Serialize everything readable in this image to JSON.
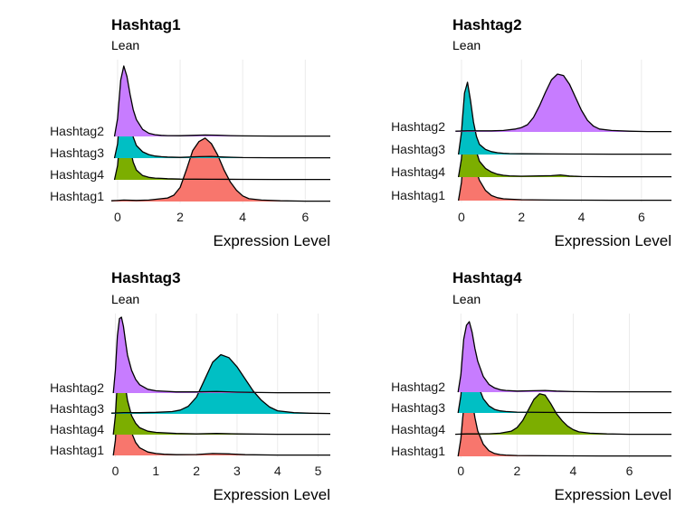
{
  "colors": {
    "Hashtag1": "#F8766D",
    "Hashtag2": "#C77CFF",
    "Hashtag3": "#00BFC4",
    "Hashtag4": "#7CAE00",
    "gridline": "#EBEBEB",
    "outline": "#000000"
  },
  "chart_data": [
    {
      "type": "area",
      "subtype": "ridgeline",
      "title": "Hashtag1",
      "subtitle": "Lean",
      "xlabel": "Expression Level",
      "ylabel": "",
      "xlim": [
        -0.2,
        6.8
      ],
      "xticks": [
        0,
        2,
        4,
        6
      ],
      "grid": true,
      "legend": "none",
      "rows": [
        "Hashtag2",
        "Hashtag3",
        "Hashtag4",
        "Hashtag1"
      ],
      "series": [
        {
          "name": "Hashtag1",
          "x": [
            -0.2,
            0.2,
            0.6,
            1.0,
            1.4,
            1.6,
            1.8,
            2.0,
            2.2,
            2.4,
            2.6,
            2.8,
            3.0,
            3.2,
            3.4,
            3.6,
            3.8,
            4.0,
            4.2,
            4.6,
            5.2,
            6.0,
            6.8
          ],
          "density": [
            0.01,
            0.02,
            0.015,
            0.02,
            0.04,
            0.05,
            0.09,
            0.2,
            0.45,
            0.72,
            0.85,
            0.9,
            0.82,
            0.66,
            0.45,
            0.28,
            0.16,
            0.08,
            0.04,
            0.02,
            0.01,
            0.005,
            0.005
          ]
        },
        {
          "name": "Hashtag4",
          "x": [
            -0.1,
            0.0,
            0.1,
            0.2,
            0.3,
            0.4,
            0.5,
            0.6,
            0.8,
            1.0,
            1.2,
            1.4,
            1.6,
            2.0,
            3.0,
            4.0,
            5.0,
            6.0,
            6.8
          ],
          "density": [
            0.0,
            0.2,
            0.7,
            1.0,
            0.8,
            0.45,
            0.25,
            0.14,
            0.06,
            0.035,
            0.025,
            0.02,
            0.015,
            0.01,
            0.008,
            0.006,
            0.005,
            0.005,
            0.005
          ]
        },
        {
          "name": "Hashtag3",
          "x": [
            -0.1,
            0.0,
            0.1,
            0.2,
            0.3,
            0.4,
            0.5,
            0.6,
            0.8,
            1.0,
            1.2,
            1.4,
            1.6,
            2.0,
            2.6,
            3.0,
            3.4,
            4.0,
            5.0,
            6.0,
            6.8
          ],
          "density": [
            0.0,
            0.2,
            0.75,
            1.0,
            0.82,
            0.5,
            0.3,
            0.18,
            0.09,
            0.05,
            0.03,
            0.02,
            0.015,
            0.01,
            0.02,
            0.025,
            0.015,
            0.008,
            0.005,
            0.005,
            0.005
          ]
        },
        {
          "name": "Hashtag2",
          "x": [
            -0.1,
            0.0,
            0.1,
            0.2,
            0.3,
            0.4,
            0.5,
            0.6,
            0.8,
            1.0,
            1.2,
            1.4,
            1.6,
            2.0,
            2.4,
            2.8,
            3.2,
            3.6,
            4.0,
            5.0,
            6.0,
            6.8
          ],
          "density": [
            0.0,
            0.25,
            0.8,
            1.0,
            0.85,
            0.6,
            0.38,
            0.24,
            0.1,
            0.045,
            0.025,
            0.015,
            0.012,
            0.01,
            0.015,
            0.02,
            0.018,
            0.012,
            0.008,
            0.005,
            0.005,
            0.005
          ]
        }
      ]
    },
    {
      "type": "area",
      "subtype": "ridgeline",
      "title": "Hashtag2",
      "subtitle": "Lean",
      "xlabel": "Expression Level",
      "ylabel": "",
      "xlim": [
        -0.3,
        7.0
      ],
      "xticks": [
        0,
        2,
        4,
        6
      ],
      "grid": true,
      "legend": "none",
      "rows": [
        "Hashtag2",
        "Hashtag3",
        "Hashtag4",
        "Hashtag1"
      ],
      "series": [
        {
          "name": "Hashtag1",
          "x": [
            -0.1,
            0.0,
            0.1,
            0.2,
            0.3,
            0.4,
            0.5,
            0.6,
            0.8,
            1.0,
            1.2,
            1.4,
            1.6,
            2.0,
            3.0,
            4.0,
            5.0,
            6.0,
            7.0
          ],
          "density": [
            0.0,
            0.25,
            0.75,
            1.0,
            0.85,
            0.6,
            0.4,
            0.28,
            0.14,
            0.07,
            0.04,
            0.025,
            0.02,
            0.012,
            0.008,
            0.006,
            0.005,
            0.005,
            0.005
          ]
        },
        {
          "name": "Hashtag4",
          "x": [
            -0.1,
            0.0,
            0.1,
            0.2,
            0.3,
            0.4,
            0.5,
            0.6,
            0.8,
            1.0,
            1.2,
            1.4,
            1.6,
            2.0,
            3.0,
            3.3,
            3.6,
            4.0,
            5.0,
            6.0,
            7.0
          ],
          "density": [
            0.0,
            0.25,
            0.8,
            1.0,
            0.8,
            0.55,
            0.35,
            0.22,
            0.12,
            0.07,
            0.04,
            0.025,
            0.018,
            0.012,
            0.02,
            0.03,
            0.015,
            0.008,
            0.005,
            0.005,
            0.005
          ]
        },
        {
          "name": "Hashtag3",
          "x": [
            -0.1,
            0.0,
            0.1,
            0.2,
            0.3,
            0.4,
            0.5,
            0.6,
            0.8,
            1.0,
            1.2,
            1.4,
            1.6,
            2.0,
            3.0,
            4.0,
            5.0,
            6.0,
            7.0
          ],
          "density": [
            0.0,
            0.3,
            0.85,
            1.0,
            0.75,
            0.45,
            0.25,
            0.14,
            0.07,
            0.04,
            0.025,
            0.018,
            0.013,
            0.01,
            0.008,
            0.006,
            0.005,
            0.005,
            0.005
          ]
        },
        {
          "name": "Hashtag2",
          "x": [
            -0.2,
            0.2,
            0.6,
            1.0,
            1.4,
            1.8,
            2.0,
            2.2,
            2.4,
            2.6,
            2.8,
            3.0,
            3.2,
            3.4,
            3.6,
            3.8,
            4.0,
            4.2,
            4.4,
            4.6,
            5.0,
            5.6,
            6.2,
            7.0
          ],
          "density": [
            0.01,
            0.015,
            0.015,
            0.015,
            0.02,
            0.04,
            0.06,
            0.1,
            0.2,
            0.36,
            0.55,
            0.72,
            0.8,
            0.78,
            0.66,
            0.48,
            0.3,
            0.16,
            0.08,
            0.04,
            0.02,
            0.01,
            0.005,
            0.005
          ]
        }
      ]
    },
    {
      "type": "area",
      "subtype": "ridgeline",
      "title": "Hashtag3",
      "subtitle": "Lean",
      "xlabel": "Expression Level",
      "ylabel": "",
      "xlim": [
        -0.1,
        5.3
      ],
      "xticks": [
        0,
        1,
        2,
        3,
        4,
        5
      ],
      "grid": true,
      "legend": "none",
      "rows": [
        "Hashtag2",
        "Hashtag3",
        "Hashtag4",
        "Hashtag1"
      ],
      "series": [
        {
          "name": "Hashtag1",
          "x": [
            -0.05,
            0.0,
            0.05,
            0.1,
            0.15,
            0.2,
            0.25,
            0.3,
            0.4,
            0.5,
            0.6,
            0.8,
            1.0,
            1.2,
            1.5,
            2.0,
            2.4,
            2.8,
            3.2,
            4.0,
            5.3
          ],
          "density": [
            0.0,
            0.2,
            0.6,
            0.9,
            1.0,
            0.9,
            0.7,
            0.52,
            0.3,
            0.17,
            0.1,
            0.045,
            0.025,
            0.015,
            0.01,
            0.012,
            0.025,
            0.02,
            0.01,
            0.005,
            0.005
          ]
        },
        {
          "name": "Hashtag4",
          "x": [
            -0.05,
            0.0,
            0.05,
            0.1,
            0.15,
            0.2,
            0.25,
            0.3,
            0.4,
            0.5,
            0.6,
            0.8,
            1.0,
            1.5,
            2.0,
            2.5,
            3.0,
            4.0,
            5.3
          ],
          "density": [
            0.0,
            0.25,
            0.7,
            0.95,
            1.0,
            0.85,
            0.62,
            0.45,
            0.25,
            0.15,
            0.09,
            0.045,
            0.03,
            0.015,
            0.01,
            0.015,
            0.01,
            0.005,
            0.005
          ]
        },
        {
          "name": "Hashtag3",
          "x": [
            -0.1,
            0.2,
            0.6,
            1.0,
            1.4,
            1.6,
            1.8,
            2.0,
            2.2,
            2.4,
            2.6,
            2.8,
            3.0,
            3.2,
            3.4,
            3.6,
            3.8,
            4.0,
            4.4,
            4.8,
            5.3
          ],
          "density": [
            0.01,
            0.015,
            0.015,
            0.02,
            0.03,
            0.05,
            0.1,
            0.22,
            0.45,
            0.68,
            0.78,
            0.74,
            0.62,
            0.46,
            0.3,
            0.18,
            0.09,
            0.04,
            0.015,
            0.008,
            0.005
          ]
        },
        {
          "name": "Hashtag2",
          "x": [
            -0.05,
            0.0,
            0.05,
            0.1,
            0.15,
            0.2,
            0.25,
            0.3,
            0.4,
            0.5,
            0.6,
            0.8,
            1.0,
            1.5,
            2.0,
            2.5,
            3.0,
            4.0,
            5.3
          ],
          "density": [
            0.0,
            0.3,
            0.75,
            0.98,
            1.0,
            0.88,
            0.68,
            0.5,
            0.3,
            0.18,
            0.11,
            0.05,
            0.03,
            0.015,
            0.015,
            0.02,
            0.012,
            0.005,
            0.005
          ]
        }
      ]
    },
    {
      "type": "area",
      "subtype": "ridgeline",
      "title": "Hashtag4",
      "subtitle": "Lean",
      "xlabel": "Expression Level",
      "ylabel": "",
      "xlim": [
        -0.3,
        7.5
      ],
      "xticks": [
        0,
        2,
        4,
        6
      ],
      "grid": true,
      "legend": "none",
      "rows": [
        "Hashtag2",
        "Hashtag3",
        "Hashtag4",
        "Hashtag1"
      ],
      "series": [
        {
          "name": "Hashtag1",
          "x": [
            -0.1,
            0.0,
            0.1,
            0.2,
            0.3,
            0.4,
            0.5,
            0.6,
            0.8,
            1.0,
            1.2,
            1.4,
            1.6,
            2.0,
            3.0,
            4.0,
            5.0,
            6.0,
            7.5
          ],
          "density": [
            0.0,
            0.25,
            0.7,
            0.95,
            1.0,
            0.8,
            0.55,
            0.36,
            0.17,
            0.08,
            0.04,
            0.025,
            0.018,
            0.012,
            0.008,
            0.006,
            0.005,
            0.005,
            0.005
          ]
        },
        {
          "name": "Hashtag4",
          "x": [
            -0.2,
            0.2,
            0.6,
            1.0,
            1.4,
            1.8,
            2.0,
            2.2,
            2.4,
            2.6,
            2.8,
            3.0,
            3.2,
            3.4,
            3.6,
            3.8,
            4.0,
            4.2,
            4.6,
            5.2,
            6.0,
            7.5
          ],
          "density": [
            0.005,
            0.01,
            0.01,
            0.012,
            0.02,
            0.05,
            0.1,
            0.2,
            0.35,
            0.5,
            0.58,
            0.56,
            0.44,
            0.3,
            0.2,
            0.12,
            0.07,
            0.04,
            0.02,
            0.01,
            0.005,
            0.005
          ]
        },
        {
          "name": "Hashtag3",
          "x": [
            -0.1,
            0.0,
            0.1,
            0.2,
            0.3,
            0.4,
            0.5,
            0.6,
            0.8,
            1.0,
            1.2,
            1.4,
            1.6,
            2.0,
            3.0,
            4.0,
            5.0,
            6.0,
            7.5
          ],
          "density": [
            0.0,
            0.25,
            0.7,
            0.95,
            1.0,
            0.82,
            0.58,
            0.4,
            0.2,
            0.1,
            0.05,
            0.03,
            0.02,
            0.012,
            0.008,
            0.006,
            0.005,
            0.005,
            0.005
          ]
        },
        {
          "name": "Hashtag2",
          "x": [
            -0.1,
            0.0,
            0.1,
            0.2,
            0.3,
            0.4,
            0.5,
            0.6,
            0.8,
            1.0,
            1.2,
            1.4,
            1.6,
            2.0,
            2.6,
            3.0,
            3.4,
            4.0,
            5.0,
            6.0,
            7.5
          ],
          "density": [
            0.0,
            0.25,
            0.75,
            0.95,
            1.0,
            0.85,
            0.62,
            0.44,
            0.22,
            0.11,
            0.06,
            0.035,
            0.025,
            0.015,
            0.02,
            0.025,
            0.015,
            0.008,
            0.005,
            0.005,
            0.005
          ]
        }
      ]
    }
  ]
}
